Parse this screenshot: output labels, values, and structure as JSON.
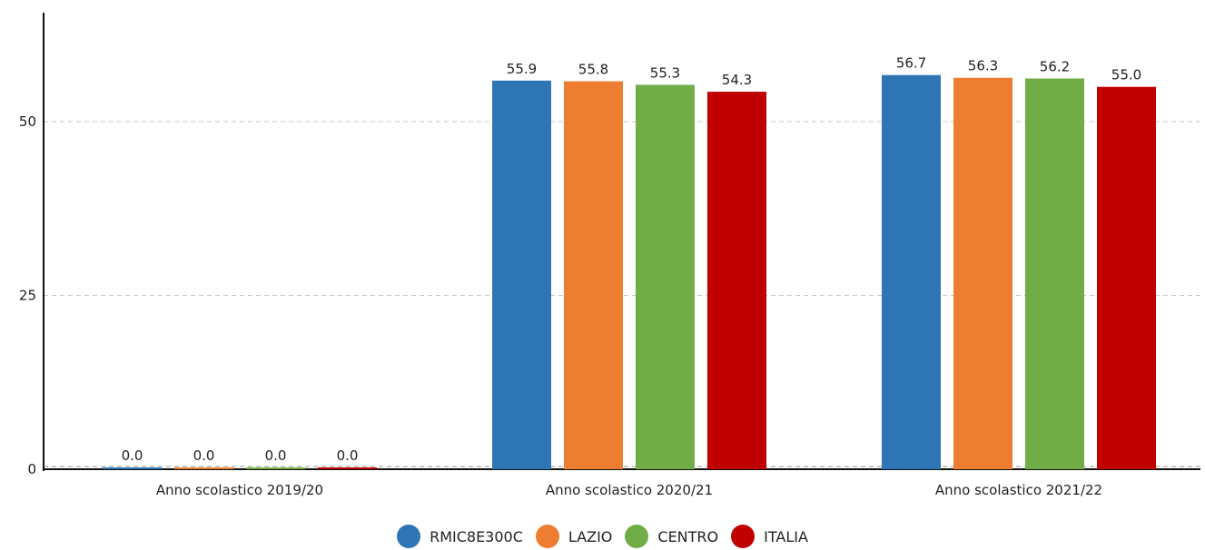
{
  "chart_data": {
    "type": "bar",
    "categories": [
      "Anno scolastico 2019/20",
      "Anno scolastico 2020/21",
      "Anno scolastico 2021/22"
    ],
    "series": [
      {
        "name": "RMIC8E300C",
        "color": "#2e75b6",
        "values": [
          0.0,
          55.9,
          56.7
        ]
      },
      {
        "name": "LAZIO",
        "color": "#ed7d31",
        "values": [
          0.0,
          55.8,
          56.3
        ]
      },
      {
        "name": "CENTRO",
        "color": "#70ad47",
        "values": [
          0.0,
          55.3,
          56.2
        ]
      },
      {
        "name": "ITALIA",
        "color": "#c00000",
        "values": [
          0.0,
          54.3,
          55.0
        ]
      }
    ],
    "yticks": [
      0,
      25,
      50
    ],
    "ylim": [
      0,
      63
    ],
    "grid": true,
    "legend_position": "bottom-center",
    "value_labels_decimals": 1
  }
}
